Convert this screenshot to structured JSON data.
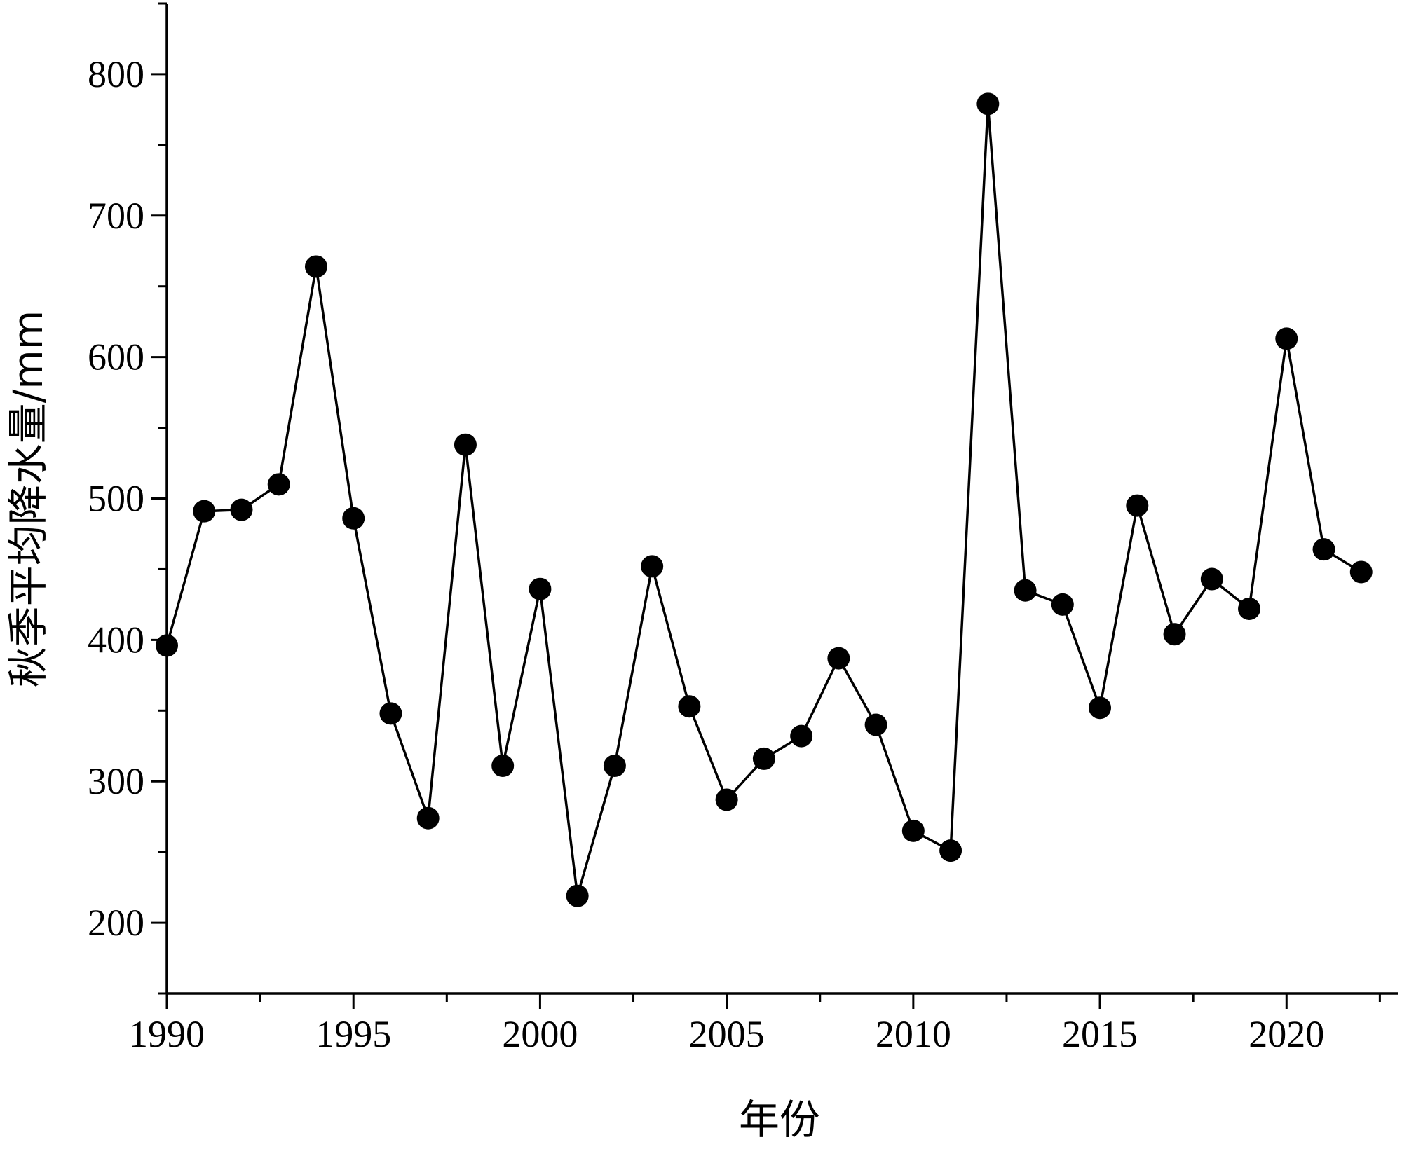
{
  "chart_data": {
    "type": "line",
    "xlabel": "年份",
    "ylabel": "秋季平均降水量/mm",
    "xlim": [
      1990,
      2023
    ],
    "ylim": [
      150,
      850
    ],
    "x_ticks_major": [
      1990,
      1995,
      2000,
      2005,
      2010,
      2015,
      2020
    ],
    "y_ticks_major": [
      200,
      300,
      400,
      500,
      600,
      700,
      800
    ],
    "grid": false,
    "legend": "none",
    "marker": "filled-circle",
    "color": "#000000",
    "series": [
      {
        "x": [
          1990,
          1991,
          1992,
          1993,
          1994,
          1995,
          1996,
          1997,
          1998,
          1999,
          2000,
          2001,
          2002,
          2003,
          2004,
          2005,
          2006,
          2007,
          2008,
          2009,
          2010,
          2011,
          2012,
          2013,
          2014,
          2015,
          2016,
          2017,
          2018,
          2019,
          2020,
          2021,
          2022
        ],
        "values": [
          396,
          491,
          492,
          510,
          664,
          486,
          348,
          274,
          538,
          311,
          436,
          219,
          311,
          452,
          353,
          287,
          316,
          332,
          387,
          340,
          265,
          251,
          779,
          435,
          425,
          352,
          495,
          404,
          443,
          422,
          613,
          464,
          448
        ]
      }
    ]
  }
}
